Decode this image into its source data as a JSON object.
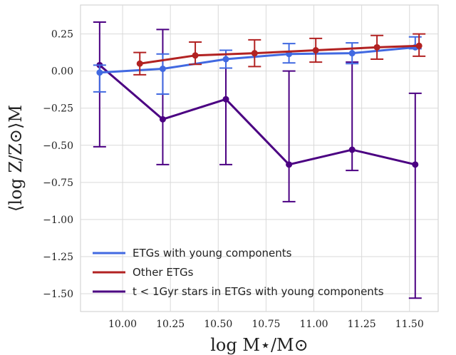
{
  "chart_data": {
    "type": "line",
    "xlabel": "log M⋆/M⊙",
    "ylabel": "⟨log Z/Z⊙⟩M",
    "xlim": [
      9.78,
      11.65
    ],
    "ylim": [
      -1.62,
      0.445
    ],
    "x_ticks": [
      10.0,
      10.25,
      10.5,
      10.75,
      11.0,
      11.25,
      11.5
    ],
    "x_tick_labels": [
      "10.00",
      "10.25",
      "10.50",
      "10.75",
      "11.00",
      "11.25",
      "11.50"
    ],
    "y_ticks": [
      0.25,
      0.0,
      -0.25,
      -0.5,
      -0.75,
      -1.0,
      -1.25,
      -1.5
    ],
    "y_tick_labels": [
      "0.25",
      "0.00",
      "−0.25",
      "−0.50",
      "−0.75",
      "−1.00",
      "−1.25",
      "−1.50"
    ],
    "grid": true,
    "legend_position": "bottom-left",
    "series": [
      {
        "name": "ETGs with young components",
        "color": "#4169e1",
        "x": [
          9.88,
          10.21,
          10.54,
          10.87,
          11.2,
          11.53
        ],
        "y": [
          -0.01,
          0.015,
          0.08,
          0.115,
          0.12,
          0.16
        ],
        "err_low": [
          0.13,
          0.17,
          0.06,
          0.06,
          0.07,
          0.01
        ],
        "err_high": [
          0.05,
          0.1,
          0.06,
          0.07,
          0.07,
          0.07
        ]
      },
      {
        "name": "Other ETGs",
        "color": "#b22222",
        "x": [
          10.09,
          10.38,
          10.69,
          11.01,
          11.33,
          11.55
        ],
        "y": [
          0.05,
          0.105,
          0.12,
          0.14,
          0.16,
          0.17
        ],
        "err_low": [
          0.075,
          0.06,
          0.09,
          0.08,
          0.08,
          0.07
        ],
        "err_high": [
          0.075,
          0.09,
          0.09,
          0.08,
          0.08,
          0.08
        ]
      },
      {
        "name": "t < 1Gyr stars in ETGs with young components",
        "color": "#4b0082",
        "x": [
          9.88,
          10.21,
          10.54,
          10.87,
          11.2,
          11.53
        ],
        "y": [
          0.04,
          -0.325,
          -0.19,
          -0.63,
          -0.53,
          -0.63
        ],
        "err_low": [
          0.55,
          0.305,
          0.44,
          0.25,
          0.14,
          0.9
        ],
        "err_high": [
          0.29,
          0.605,
          0.33,
          0.63,
          0.59,
          0.48
        ]
      }
    ]
  }
}
